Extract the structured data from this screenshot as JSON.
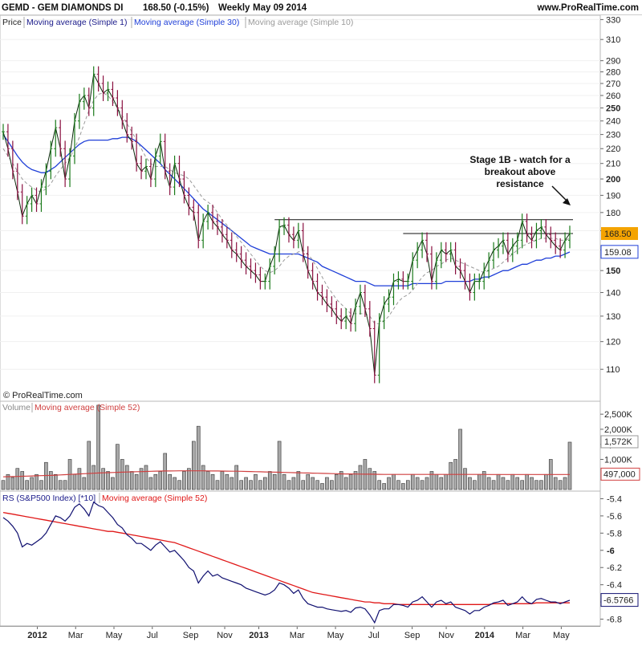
{
  "header": {
    "title": "GEMD - GEM DIAMONDS DI",
    "quote": "168.50 (-0.15%)",
    "period": "Weekly",
    "date": "May 09 2014",
    "site": "www.ProRealTime.com"
  },
  "chart_data": [
    {
      "type": "candlestick",
      "panel": "price",
      "legend": [
        "Price",
        "Moving average (Simple 1)",
        "Moving average (Simple 30)",
        "Moving average (Simple 10)"
      ],
      "copyright": "© ProRealTime.com",
      "annotation": [
        "Stage 1B - watch for a",
        "breakout above",
        "resistance"
      ],
      "ylim": [
        100,
        332
      ],
      "y_ticks": [
        110,
        120,
        130,
        140,
        150,
        160,
        170,
        180,
        190,
        200,
        210,
        220,
        230,
        240,
        250,
        260,
        270,
        280,
        290,
        310,
        330
      ],
      "y_tick_labels": [
        "110",
        "120",
        "130",
        "140",
        "150",
        "160",
        "170",
        "180",
        "190",
        "200",
        "210",
        "220",
        "230",
        "240",
        "250",
        "260",
        "270",
        "280",
        "290",
        "310",
        "330"
      ],
      "last_price_label": "168.50",
      "last_price": 168.5,
      "ma30_label": "159.08",
      "ma30_last": 159.08,
      "resistance_lines": [
        176,
        168.5
      ],
      "close_series": [
        232,
        220,
        205,
        192,
        178,
        185,
        190,
        185,
        195,
        205,
        220,
        235,
        220,
        200,
        215,
        240,
        255,
        260,
        250,
        278,
        270,
        262,
        265,
        258,
        250,
        240,
        230,
        225,
        210,
        205,
        208,
        200,
        215,
        225,
        205,
        195,
        210,
        200,
        190,
        183,
        180,
        165,
        175,
        180,
        175,
        172,
        168,
        165,
        160,
        158,
        155,
        152,
        150,
        148,
        145,
        145,
        152,
        158,
        172,
        173,
        168,
        165,
        170,
        158,
        150,
        145,
        140,
        138,
        135,
        133,
        130,
        128,
        130,
        127,
        134,
        140,
        133,
        125,
        108,
        128,
        135,
        138,
        145,
        146,
        145,
        145,
        155,
        160,
        165,
        158,
        145,
        155,
        160,
        158,
        160,
        152,
        150,
        145,
        140,
        145,
        145,
        150,
        155,
        160,
        162,
        165,
        158,
        162,
        165,
        175,
        168,
        165,
        170,
        172,
        168,
        165,
        162,
        160,
        165,
        168.5
      ],
      "ma10_series": [
        220,
        215,
        210,
        205,
        200,
        197,
        195,
        193,
        192,
        194,
        197,
        202,
        206,
        210,
        214,
        220,
        228,
        238,
        248,
        256,
        261,
        262,
        260,
        255,
        250,
        244,
        238,
        232,
        226,
        220,
        214,
        210,
        208,
        208,
        208,
        206,
        204,
        203,
        202,
        200,
        196,
        192,
        188,
        186,
        184,
        180,
        176,
        173,
        170,
        167,
        164,
        161,
        158,
        155,
        152,
        150,
        149,
        150,
        152,
        155,
        157,
        158,
        159,
        160,
        158,
        155,
        151,
        147,
        143,
        140,
        137,
        135,
        133,
        131,
        131,
        131,
        131,
        130,
        127,
        127,
        128,
        130,
        133,
        136,
        138,
        139,
        141,
        144,
        147,
        149,
        150,
        152,
        153,
        155,
        156,
        155,
        154,
        153,
        152,
        151,
        150,
        149,
        150,
        151,
        152,
        154,
        156,
        158,
        160,
        162,
        163,
        164,
        165,
        166,
        166,
        166,
        166,
        165,
        165,
        166
      ],
      "ma30_series": [
        230,
        225,
        220,
        215,
        211,
        208,
        206,
        205,
        204,
        204,
        206,
        208,
        211,
        214,
        217,
        220,
        223,
        225,
        226,
        226,
        226,
        226,
        226,
        227,
        227,
        228,
        228,
        227,
        225,
        222,
        219,
        216,
        213,
        210,
        206,
        203,
        200,
        197,
        194,
        191,
        188,
        185,
        182,
        180,
        178,
        176,
        174,
        172,
        170,
        168,
        166,
        164,
        162,
        161,
        160,
        159,
        158,
        158,
        158,
        158,
        158,
        158,
        158,
        157,
        156,
        155,
        154,
        152,
        151,
        150,
        149,
        148,
        147,
        146,
        145,
        145,
        145,
        144,
        143,
        143,
        143,
        143,
        143,
        143,
        143,
        143,
        144,
        144,
        144,
        144,
        144,
        144,
        144,
        145,
        145,
        145,
        145,
        145,
        145,
        146,
        146,
        147,
        147,
        148,
        149,
        150,
        150,
        151,
        152,
        153,
        153,
        154,
        155,
        155,
        156,
        156,
        157,
        157,
        158,
        159
      ]
    },
    {
      "type": "bar",
      "panel": "volume",
      "legend": [
        "Volume",
        "Moving average (Simple 52)"
      ],
      "ylim": [
        0,
        2850000
      ],
      "y_ticks": [
        1000000,
        1500000,
        2000000,
        2500000
      ],
      "y_tick_labels": [
        "1,000K",
        "1,500K",
        "2,000K",
        "2,500K"
      ],
      "last_volume_label": "1,572K",
      "last_volume": 1572000,
      "ma52_label": "497,000",
      "ma52_last": 497000,
      "values": [
        300000,
        500000,
        400000,
        700000,
        600000,
        300000,
        400000,
        500000,
        300000,
        900000,
        600000,
        500000,
        300000,
        300000,
        1000000,
        500000,
        700000,
        400000,
        1600000,
        800000,
        2800000,
        700000,
        600000,
        400000,
        1500000,
        1000000,
        800000,
        600000,
        500000,
        700000,
        800000,
        400000,
        500000,
        600000,
        1200000,
        500000,
        400000,
        300000,
        600000,
        700000,
        1600000,
        2100000,
        800000,
        600000,
        500000,
        300000,
        600000,
        500000,
        400000,
        800000,
        300000,
        400000,
        300000,
        500000,
        300000,
        400000,
        600000,
        500000,
        1600000,
        500000,
        300000,
        400000,
        600000,
        300000,
        500000,
        400000,
        300000,
        200000,
        400000,
        300000,
        500000,
        600000,
        400000,
        500000,
        600000,
        800000,
        1000000,
        700000,
        600000,
        300000,
        200000,
        400000,
        500000,
        300000,
        200000,
        300000,
        500000,
        400000,
        300000,
        400000,
        600000,
        500000,
        400000,
        500000,
        900000,
        1000000,
        2000000,
        700000,
        400000,
        300000,
        500000,
        600000,
        400000,
        300000,
        500000,
        400000,
        300000,
        500000,
        400000,
        300000,
        500000,
        400000,
        300000,
        300000,
        500000,
        1000000,
        400000,
        300000,
        400000,
        1572000
      ],
      "ma52_series": [
        420000,
        425000,
        430000,
        435000,
        440000,
        445000,
        450000,
        455000,
        460000,
        465000,
        470000,
        478000,
        486000,
        494000,
        502000,
        510000,
        518000,
        526000,
        534000,
        542000,
        550000,
        555000,
        560000,
        565000,
        570000,
        575000,
        580000,
        585000,
        590000,
        595000,
        600000,
        605000,
        610000,
        612000,
        614000,
        616000,
        618000,
        620000,
        620000,
        620000,
        620000,
        620000,
        620000,
        618000,
        616000,
        614000,
        612000,
        610000,
        608000,
        606000,
        604000,
        600000,
        596000,
        592000,
        588000,
        584000,
        580000,
        576000,
        572000,
        568000,
        564000,
        560000,
        556000,
        552000,
        548000,
        544000,
        540000,
        536000,
        532000,
        528000,
        524000,
        520000,
        518000,
        516000,
        514000,
        512000,
        510000,
        508000,
        506000,
        504000,
        502000,
        500000,
        500000,
        500000,
        500000,
        500000,
        500000,
        500000,
        500000,
        500000,
        500000,
        500000,
        500000,
        500000,
        500000,
        500000,
        500000,
        500000,
        500000,
        500000,
        500000,
        500000,
        499000,
        499000,
        499000,
        499000,
        499000,
        498000,
        498000,
        498000,
        498000,
        498000,
        498000,
        497000,
        497000,
        497000,
        497000,
        497000,
        497000,
        497000
      ]
    },
    {
      "type": "line",
      "panel": "relative-strength",
      "legend": [
        "RS (S&P500 Index) [*10]",
        "Moving average (Simple 52)"
      ],
      "ylim": [
        -6.86,
        -5.34
      ],
      "y_ticks": [
        -5.4,
        -5.6,
        -5.8,
        -6.0,
        -6.2,
        -6.4,
        -6.6,
        -6.8
      ],
      "y_tick_labels": [
        "-5.4",
        "-5.6",
        "-5.8",
        "-6",
        "-6.2",
        "-6.4",
        "-6.6",
        "-6.8"
      ],
      "last_rs_label": "-6.5766",
      "last_rs": -6.5766,
      "rs_series": [
        -5.62,
        -5.66,
        -5.72,
        -5.8,
        -5.96,
        -5.92,
        -5.94,
        -5.9,
        -5.86,
        -5.8,
        -5.7,
        -5.6,
        -5.62,
        -5.66,
        -5.6,
        -5.5,
        -5.46,
        -5.52,
        -5.6,
        -5.44,
        -5.48,
        -5.5,
        -5.56,
        -5.62,
        -5.7,
        -5.74,
        -5.82,
        -5.86,
        -5.92,
        -5.92,
        -5.96,
        -6.0,
        -5.94,
        -5.9,
        -5.96,
        -6.02,
        -6.0,
        -6.06,
        -6.12,
        -6.2,
        -6.24,
        -6.38,
        -6.3,
        -6.24,
        -6.3,
        -6.28,
        -6.32,
        -6.34,
        -6.36,
        -6.38,
        -6.4,
        -6.44,
        -6.46,
        -6.48,
        -6.5,
        -6.52,
        -6.5,
        -6.46,
        -6.38,
        -6.4,
        -6.44,
        -6.5,
        -6.46,
        -6.56,
        -6.62,
        -6.64,
        -6.66,
        -6.66,
        -6.68,
        -6.69,
        -6.7,
        -6.71,
        -6.7,
        -6.72,
        -6.67,
        -6.66,
        -6.68,
        -6.75,
        -6.84,
        -6.7,
        -6.68,
        -6.68,
        -6.63,
        -6.63,
        -6.64,
        -6.66,
        -6.6,
        -6.58,
        -6.54,
        -6.6,
        -6.66,
        -6.6,
        -6.58,
        -6.62,
        -6.6,
        -6.66,
        -6.68,
        -6.7,
        -6.74,
        -6.7,
        -6.7,
        -6.66,
        -6.64,
        -6.61,
        -6.6,
        -6.58,
        -6.64,
        -6.62,
        -6.6,
        -6.54,
        -6.6,
        -6.62,
        -6.57,
        -6.56,
        -6.58,
        -6.6,
        -6.6,
        -6.62,
        -6.6,
        -6.58
      ],
      "ma52_series": [
        -5.56,
        -5.57,
        -5.58,
        -5.59,
        -5.6,
        -5.61,
        -5.62,
        -5.63,
        -5.64,
        -5.65,
        -5.66,
        -5.67,
        -5.68,
        -5.69,
        -5.7,
        -5.71,
        -5.72,
        -5.73,
        -5.74,
        -5.75,
        -5.76,
        -5.77,
        -5.78,
        -5.78,
        -5.79,
        -5.8,
        -5.81,
        -5.82,
        -5.83,
        -5.84,
        -5.85,
        -5.86,
        -5.87,
        -5.88,
        -5.89,
        -5.9,
        -5.91,
        -5.93,
        -5.95,
        -5.97,
        -5.99,
        -6.01,
        -6.03,
        -6.05,
        -6.07,
        -6.09,
        -6.11,
        -6.13,
        -6.15,
        -6.17,
        -6.19,
        -6.21,
        -6.23,
        -6.25,
        -6.27,
        -6.29,
        -6.31,
        -6.33,
        -6.35,
        -6.37,
        -6.39,
        -6.41,
        -6.43,
        -6.45,
        -6.47,
        -6.49,
        -6.5,
        -6.51,
        -6.52,
        -6.53,
        -6.54,
        -6.55,
        -6.56,
        -6.57,
        -6.58,
        -6.59,
        -6.6,
        -6.6,
        -6.61,
        -6.61,
        -6.62,
        -6.62,
        -6.62,
        -6.63,
        -6.63,
        -6.63,
        -6.63,
        -6.63,
        -6.63,
        -6.63,
        -6.63,
        -6.63,
        -6.63,
        -6.63,
        -6.63,
        -6.63,
        -6.63,
        -6.63,
        -6.63,
        -6.63,
        -6.63,
        -6.63,
        -6.63,
        -6.62,
        -6.62,
        -6.62,
        -6.62,
        -6.62,
        -6.62,
        -6.62,
        -6.62,
        -6.62,
        -6.61,
        -6.61,
        -6.61,
        -6.61,
        -6.61,
        -6.61,
        -6.61,
        -6.61
      ]
    }
  ],
  "x_axis": {
    "labels": [
      "2012",
      "Mar",
      "May",
      "Jul",
      "Sep",
      "Nov",
      "2013",
      "Mar",
      "May",
      "Jul",
      "Sep",
      "Nov",
      "2014",
      "Mar",
      "May"
    ],
    "bold": [
      true,
      false,
      false,
      false,
      false,
      false,
      true,
      false,
      false,
      false,
      false,
      false,
      true,
      false,
      false
    ],
    "week_index": [
      8,
      17,
      26,
      35,
      44,
      52,
      60,
      69,
      78,
      87,
      96,
      104,
      113,
      122,
      131
    ]
  },
  "colors": {
    "up": "#1a7a1a",
    "down": "#8a1040",
    "ma1": "#0a2a0a",
    "ma10": "#9a9a9a",
    "ma30": "#1f3fd8",
    "volume_ma": "#d04040",
    "rs": "#101070",
    "rs_ma": "#e01818",
    "price_tag": "#f4a300",
    "legend_ma1": "#1a1a8a",
    "legend_ma30": "#1f3fd8",
    "legend_ma10": "#9a9a9a",
    "legend_vol_ma": "#d04040",
    "legend_rs": "#1a1a8a",
    "legend_rs_ma": "#e01818"
  }
}
